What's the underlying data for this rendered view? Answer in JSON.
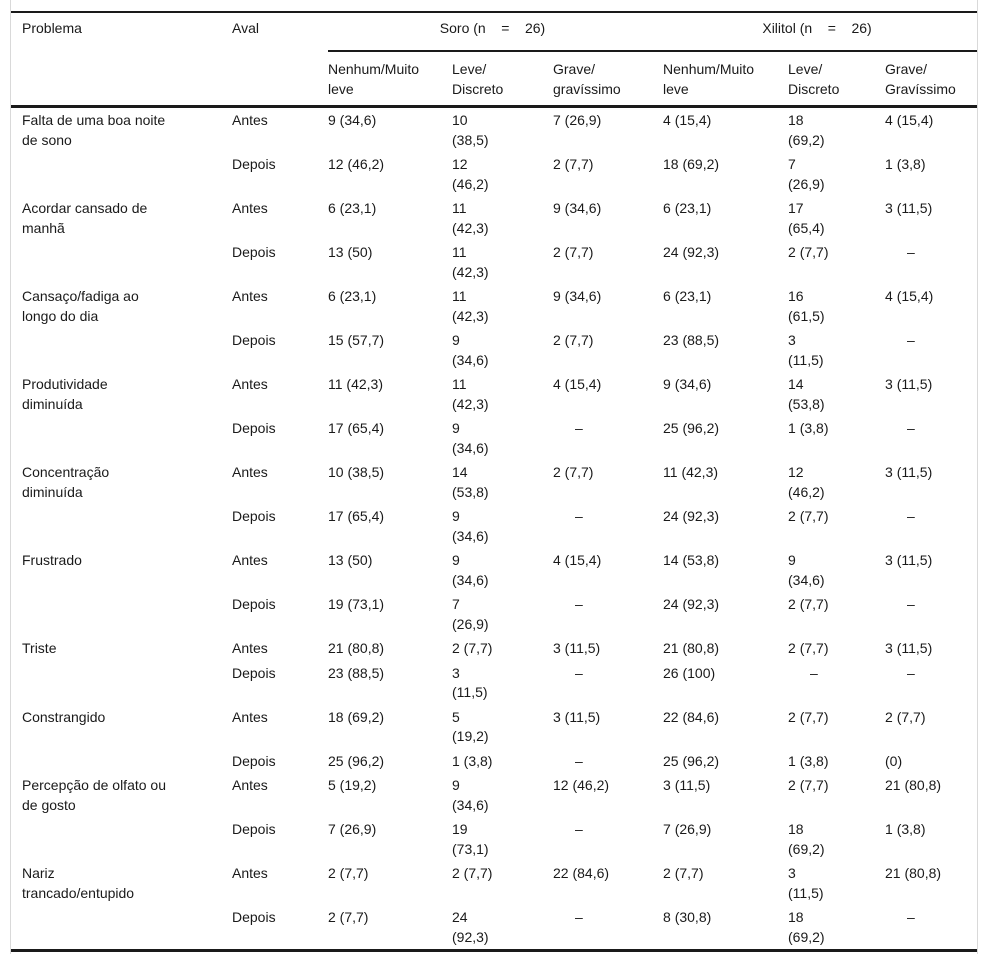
{
  "meta": {
    "colors": {
      "text": "#1a1a1a",
      "rule": "#1a1a1a",
      "frame_border": "#d9d9d9",
      "background": "#ffffff"
    }
  },
  "table": {
    "header": {
      "problema": "Problema",
      "aval": "Aval",
      "soro": "Soro (n    =    26)",
      "xilitol": "Xilitol (n    =    26)",
      "sub": [
        "Nenhum/Muito\nleve",
        "Leve/\nDiscreto",
        "Grave/\ngravíssimo",
        "Nenhum/Muito\nleve",
        "Leve/\nDiscreto",
        "Grave/\nGravíssimo"
      ]
    },
    "rows": [
      {
        "problema": "Falta de uma boa noite\nde sono",
        "sub": [
          {
            "aval": "Antes",
            "values": [
              "9 (34,6)",
              "10\n(38,5)",
              "7 (26,9)",
              "4 (15,4)",
              "18\n(69,2)",
              "4 (15,4)"
            ]
          },
          {
            "aval": "Depois",
            "values": [
              "12 (46,2)",
              "12\n(46,2)",
              "2 (7,7)",
              "18 (69,2)",
              "7\n(26,9)",
              "1 (3,8)"
            ]
          }
        ]
      },
      {
        "problema": "Acordar cansado de\nmanhã",
        "sub": [
          {
            "aval": "Antes",
            "values": [
              "6 (23,1)",
              "11\n(42,3)",
              "9 (34,6)",
              "6 (23,1)",
              "17\n(65,4)",
              "3 (11,5)"
            ]
          },
          {
            "aval": "Depois",
            "values": [
              "13 (50)",
              "11\n(42,3)",
              "2 (7,7)",
              "24 (92,3)",
              "2 (7,7)",
              "–"
            ]
          }
        ]
      },
      {
        "problema": "Cansaço/fadiga ao\nlongo do dia",
        "sub": [
          {
            "aval": "Antes",
            "values": [
              "6 (23,1)",
              "11\n(42,3)",
              "9 (34,6)",
              "6 (23,1)",
              "16\n(61,5)",
              "4 (15,4)"
            ]
          },
          {
            "aval": "Depois",
            "values": [
              "15 (57,7)",
              "9\n(34,6)",
              "2 (7,7)",
              "23 (88,5)",
              "3\n(11,5)",
              "–"
            ]
          }
        ]
      },
      {
        "problema": "Produtividade\ndiminuída",
        "sub": [
          {
            "aval": "Antes",
            "values": [
              "11 (42,3)",
              "11\n(42,3)",
              "4 (15,4)",
              "9 (34,6)",
              "14\n(53,8)",
              "3 (11,5)"
            ]
          },
          {
            "aval": "Depois",
            "values": [
              "17 (65,4)",
              "9\n(34,6)",
              "–",
              "25 (96,2)",
              "1 (3,8)",
              "–"
            ]
          }
        ]
      },
      {
        "problema": "Concentração\ndiminuída",
        "sub": [
          {
            "aval": "Antes",
            "values": [
              "10 (38,5)",
              "14\n(53,8)",
              "2 (7,7)",
              "11 (42,3)",
              "12\n(46,2)",
              "3 (11,5)"
            ]
          },
          {
            "aval": "Depois",
            "values": [
              "17 (65,4)",
              "9\n(34,6)",
              "–",
              "24 (92,3)",
              "2 (7,7)",
              "–"
            ]
          }
        ]
      },
      {
        "problema": "Frustrado",
        "sub": [
          {
            "aval": "Antes",
            "values": [
              "13 (50)",
              "9\n(34,6)",
              "4 (15,4)",
              "14 (53,8)",
              "9\n(34,6)",
              "3 (11,5)"
            ]
          },
          {
            "aval": "Depois",
            "values": [
              "19 (73,1)",
              "7\n(26,9)",
              "–",
              "24 (92,3)",
              "2 (7,7)",
              "–"
            ]
          }
        ]
      },
      {
        "problema": "Triste",
        "sub": [
          {
            "aval": "Antes",
            "values": [
              "21 (80,8)",
              "2 (7,7)",
              "3 (11,5)",
              "21 (80,8)",
              "2 (7,7)",
              "3 (11,5)"
            ]
          },
          {
            "aval": "Depois",
            "values": [
              "23 (88,5)",
              "3\n(11,5)",
              "–",
              "26 (100)",
              "–",
              "–"
            ]
          }
        ]
      },
      {
        "problema": "Constrangido",
        "sub": [
          {
            "aval": "Antes",
            "values": [
              "18 (69,2)",
              "5\n(19,2)",
              "3 (11,5)",
              "22 (84,6)",
              "2 (7,7)",
              "2 (7,7)"
            ]
          },
          {
            "aval": "Depois",
            "values": [
              "25 (96,2)",
              "1 (3,8)",
              "–",
              "25 (96,2)",
              "1 (3,8)",
              "(0)"
            ]
          }
        ]
      },
      {
        "problema": "Percepção de olfato ou\nde gosto",
        "sub": [
          {
            "aval": "Antes",
            "values": [
              "5 (19,2)",
              "9\n(34,6)",
              "12 (46,2)",
              "3 (11,5)",
              "2 (7,7)",
              "21 (80,8)"
            ]
          },
          {
            "aval": "Depois",
            "values": [
              "7 (26,9)",
              "19\n(73,1)",
              "–",
              "7 (26,9)",
              "18\n(69,2)",
              "1 (3,8)"
            ]
          }
        ]
      },
      {
        "problema": "Nariz\ntrancado/entupido",
        "sub": [
          {
            "aval": "Antes",
            "values": [
              "2 (7,7)",
              "2 (7,7)",
              "22 (84,6)",
              "2 (7,7)",
              "3\n(11,5)",
              "21 (80,8)"
            ]
          },
          {
            "aval": "Depois",
            "values": [
              "2 (7,7)",
              "24\n(92,3)",
              "–",
              "8 (30,8)",
              "18\n(69,2)",
              "–"
            ]
          }
        ]
      }
    ]
  }
}
